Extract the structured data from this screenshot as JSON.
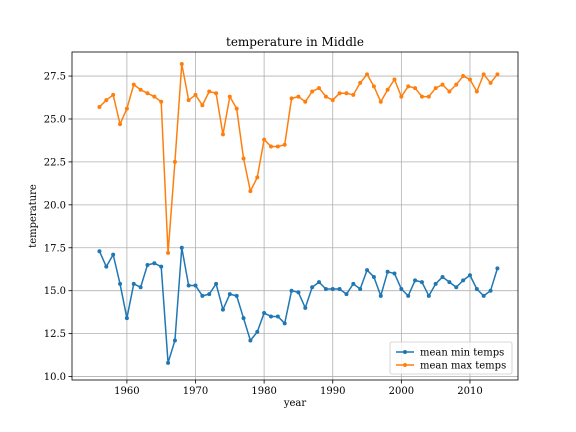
{
  "chart_data": {
    "type": "line",
    "title": "temperature in Middle",
    "xlabel": "year",
    "ylabel": "temperature",
    "xlim": [
      1952,
      2017
    ],
    "ylim": [
      9.8,
      28.9
    ],
    "xticks": [
      1960,
      1970,
      1980,
      1990,
      2000,
      2010
    ],
    "yticks": [
      10.0,
      12.5,
      15.0,
      17.5,
      20.0,
      22.5,
      25.0,
      27.5
    ],
    "ytick_labels": [
      "10.0",
      "12.5",
      "15.0",
      "17.5",
      "20.0",
      "22.5",
      "25.0",
      "27.5"
    ],
    "grid": true,
    "legend_position": "lower-right",
    "x": [
      1956,
      1957,
      1958,
      1959,
      1960,
      1961,
      1962,
      1963,
      1964,
      1965,
      1966,
      1967,
      1968,
      1969,
      1970,
      1971,
      1972,
      1973,
      1974,
      1975,
      1976,
      1977,
      1978,
      1979,
      1980,
      1981,
      1982,
      1983,
      1984,
      1985,
      1986,
      1987,
      1988,
      1989,
      1990,
      1991,
      1992,
      1993,
      1994,
      1995,
      1996,
      1997,
      1998,
      1999,
      2000,
      2001,
      2002,
      2003,
      2004,
      2005,
      2006,
      2007,
      2008,
      2009,
      2010,
      2011,
      2012,
      2013,
      2014
    ],
    "series": [
      {
        "name": "mean min temps",
        "color": "#1f77b4",
        "values": [
          17.3,
          16.4,
          17.1,
          15.4,
          13.4,
          15.4,
          15.2,
          16.5,
          16.6,
          16.4,
          10.8,
          12.1,
          17.5,
          15.3,
          15.3,
          14.7,
          14.8,
          15.4,
          13.9,
          14.8,
          14.7,
          13.4,
          12.1,
          12.6,
          13.7,
          13.5,
          13.5,
          13.1,
          15.0,
          14.9,
          14.0,
          15.2,
          15.5,
          15.1,
          15.1,
          15.1,
          14.8,
          15.4,
          15.1,
          16.2,
          15.8,
          14.7,
          16.1,
          16.0,
          15.1,
          14.7,
          15.6,
          15.5,
          14.7,
          15.4,
          15.8,
          15.5,
          15.2,
          15.6,
          15.9,
          15.1,
          14.7,
          15.0,
          16.3
        ]
      },
      {
        "name": "mean max temps",
        "color": "#ff7f0e",
        "values": [
          25.7,
          26.1,
          26.4,
          24.7,
          25.6,
          27.0,
          26.7,
          26.5,
          26.3,
          26.0,
          17.2,
          22.5,
          28.2,
          26.1,
          26.4,
          25.8,
          26.6,
          26.5,
          24.1,
          26.3,
          25.6,
          22.7,
          20.8,
          21.6,
          23.8,
          23.4,
          23.4,
          23.5,
          26.2,
          26.3,
          26.0,
          26.6,
          26.8,
          26.3,
          26.1,
          26.5,
          26.5,
          26.4,
          27.1,
          27.6,
          26.9,
          26.0,
          26.7,
          27.3,
          26.3,
          26.9,
          26.8,
          26.3,
          26.3,
          26.8,
          27.0,
          26.6,
          27.0,
          27.5,
          27.3,
          26.6,
          27.6,
          27.1,
          27.6
        ]
      }
    ]
  }
}
